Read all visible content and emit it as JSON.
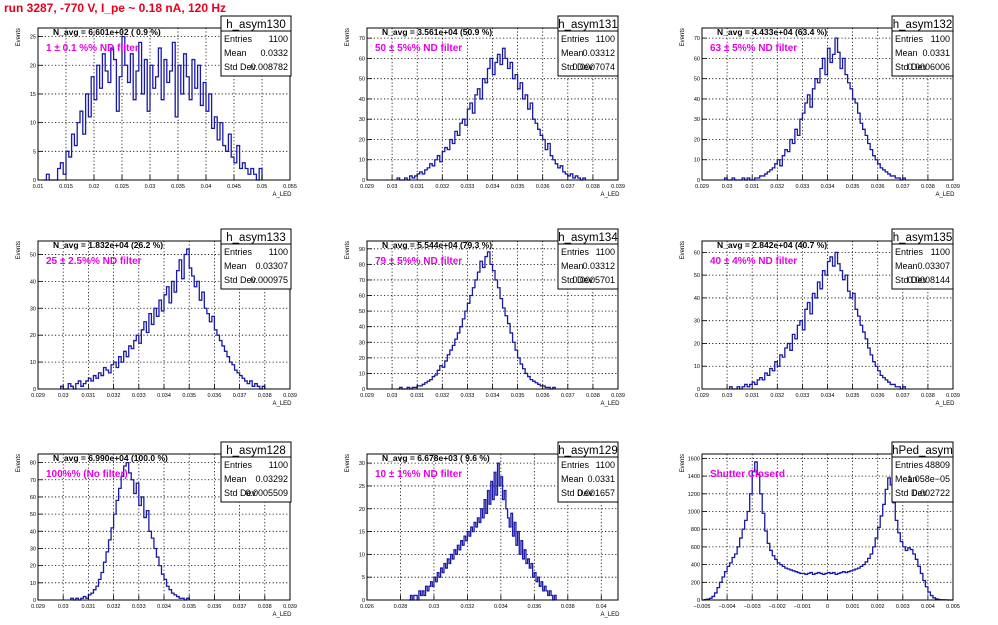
{
  "run_title": "run 3287,  -770 V, I_pe ~ 0.18 nA, 120 Hz",
  "colors": {
    "hist": "#1a1aa6",
    "label": "#e600e6",
    "title": "#e8001c",
    "grid": "#000000"
  },
  "stat_labels": {
    "entries": "Entries",
    "mean": "Mean",
    "std": "Std Dev"
  },
  "chart_data": [
    {
      "type": "histogram",
      "name": "h_asym130",
      "navg": "N_avg = 6.601e+02 ( 0.9 %)",
      "label": "1 ± 0.1 %% ND filter",
      "stats": {
        "entries": "1100",
        "mean": "0.0332",
        "std": "0.008782"
      },
      "ylabel": "Events",
      "xlabel": "A_LED",
      "xlim": [
        0.01,
        0.055
      ],
      "ylim": [
        0,
        26.5
      ],
      "xticks": [
        0.01,
        0.015,
        0.02,
        0.025,
        0.03,
        0.035,
        0.04,
        0.045,
        0.05,
        0.055
      ],
      "xticklabels": [
        "0.01",
        "0.015",
        "0.02",
        "0.025",
        "0.03",
        "0.035",
        "0.04",
        "0.045",
        "0.05",
        "0.055"
      ],
      "yticks": [
        0,
        5,
        10,
        15,
        20,
        25
      ],
      "yticklabels": [
        "0",
        "5",
        "10",
        "15",
        "20",
        "25"
      ],
      "binstart": 0.011,
      "binwidth": 0.0005,
      "counts": [
        0,
        1,
        0,
        0,
        0,
        2,
        3,
        1,
        5,
        4,
        8,
        6,
        10,
        12,
        8,
        15,
        11,
        18,
        14,
        20,
        16,
        22,
        19,
        17,
        23,
        21,
        12,
        18,
        25,
        20,
        17,
        22,
        14,
        19,
        24,
        15,
        21,
        12,
        20,
        16,
        18,
        23,
        14,
        21,
        17,
        19,
        24,
        11,
        20,
        15,
        22,
        18,
        14,
        21,
        16,
        20,
        13,
        17,
        12,
        15,
        9,
        11,
        7,
        10,
        6,
        5,
        8,
        4,
        3,
        6,
        2,
        3,
        2,
        1,
        2,
        1,
        0,
        2
      ]
    },
    {
      "type": "histogram",
      "name": "h_asym131",
      "navg": "N_avg = 3.561e+04 (50.9 %)",
      "label": "50 ± 5%% ND filter",
      "stats": {
        "entries": "1100",
        "mean": "0.03312",
        "std": "0.0007074"
      },
      "ylabel": "Events",
      "xlabel": "A_LED",
      "xlim": [
        0.029,
        0.039
      ],
      "ylim": [
        0,
        75
      ],
      "xticks": [
        0.029,
        0.03,
        0.031,
        0.032,
        0.033,
        0.034,
        0.035,
        0.036,
        0.037,
        0.038,
        0.039
      ],
      "xticklabels": [
        "0.029",
        "0.03",
        "0.031",
        "0.032",
        "0.033",
        "0.034",
        "0.035",
        "0.036",
        "0.037",
        "0.038",
        "0.039"
      ],
      "yticks": [
        0,
        10,
        20,
        30,
        40,
        50,
        60,
        70
      ],
      "yticklabels": [
        "0",
        "10",
        "20",
        "30",
        "40",
        "50",
        "60",
        "70"
      ],
      "binstart": 0.0302,
      "binwidth": 0.0001,
      "counts": [
        1,
        0,
        0,
        1,
        0,
        2,
        1,
        2,
        3,
        4,
        3,
        5,
        6,
        8,
        7,
        10,
        12,
        9,
        14,
        16,
        15,
        20,
        18,
        24,
        22,
        28,
        30,
        27,
        35,
        38,
        33,
        42,
        45,
        40,
        50,
        48,
        55,
        60,
        52,
        58,
        62,
        57,
        65,
        60,
        55,
        58,
        50,
        52,
        45,
        48,
        40,
        42,
        35,
        38,
        30,
        28,
        25,
        22,
        20,
        15,
        18,
        12,
        10,
        8,
        6,
        7,
        4,
        3,
        2,
        3,
        1,
        2,
        1,
        0,
        1
      ]
    },
    {
      "type": "histogram",
      "name": "h_asym132",
      "navg": "N_avg = 4.433e+04 (63.4 %)",
      "label": "63 ± 5%% ND filter",
      "stats": {
        "entries": "1100",
        "mean": "0.0331",
        "std": "0.0006006"
      },
      "ylabel": "Events",
      "xlabel": "A_LED",
      "xlim": [
        0.029,
        0.039
      ],
      "ylim": [
        0,
        75
      ],
      "xticks": [
        0.029,
        0.03,
        0.031,
        0.032,
        0.033,
        0.034,
        0.035,
        0.036,
        0.037,
        0.038,
        0.039
      ],
      "xticklabels": [
        "0.029",
        "0.03",
        "0.031",
        "0.032",
        "0.033",
        "0.034",
        "0.035",
        "0.036",
        "0.037",
        "0.038",
        "0.039"
      ],
      "yticks": [
        0,
        10,
        20,
        30,
        40,
        50,
        60,
        70
      ],
      "yticklabels": [
        "0",
        "10",
        "20",
        "30",
        "40",
        "50",
        "60",
        "70"
      ],
      "binstart": 0.0299,
      "binwidth": 0.0001,
      "counts": [
        1,
        0,
        0,
        1,
        0,
        0,
        0,
        1,
        0,
        1,
        0,
        0,
        1,
        1,
        2,
        2,
        3,
        4,
        5,
        6,
        8,
        10,
        7,
        12,
        15,
        14,
        20,
        18,
        25,
        22,
        30,
        33,
        38,
        42,
        36,
        45,
        50,
        48,
        55,
        60,
        52,
        65,
        58,
        62,
        70,
        63,
        55,
        60,
        52,
        48,
        45,
        40,
        38,
        33,
        28,
        25,
        22,
        18,
        15,
        12,
        10,
        8,
        6,
        5,
        4,
        3,
        2,
        2,
        1,
        1,
        0,
        1
      ]
    },
    {
      "type": "histogram",
      "name": "h_asym133",
      "navg": "N_avg = 1.832e+04 (26.2 %)",
      "label": "25 ± 2.5%% ND filter",
      "stats": {
        "entries": "1100",
        "mean": "0.03307",
        "std": "0.000975"
      },
      "ylabel": "Events",
      "xlabel": "A_LED",
      "xlim": [
        0.029,
        0.039
      ],
      "ylim": [
        0,
        55
      ],
      "xticks": [
        0.029,
        0.03,
        0.031,
        0.032,
        0.033,
        0.034,
        0.035,
        0.036,
        0.037,
        0.038,
        0.039
      ],
      "xticklabels": [
        "0.029",
        "0.03",
        "0.031",
        "0.032",
        "0.033",
        "0.034",
        "0.035",
        "0.036",
        "0.037",
        "0.038",
        "0.039"
      ],
      "yticks": [
        0,
        10,
        20,
        30,
        40,
        50
      ],
      "yticklabels": [
        "0",
        "10",
        "20",
        "30",
        "40",
        "50"
      ],
      "binstart": 0.0299,
      "binwidth": 0.0001,
      "counts": [
        1,
        0,
        0,
        2,
        1,
        0,
        2,
        3,
        1,
        2,
        3,
        4,
        3,
        5,
        4,
        6,
        5,
        8,
        7,
        6,
        9,
        10,
        8,
        12,
        10,
        14,
        12,
        16,
        15,
        18,
        20,
        17,
        22,
        25,
        21,
        28,
        24,
        30,
        27,
        33,
        29,
        35,
        38,
        32,
        40,
        36,
        44,
        48,
        41,
        50,
        52,
        45,
        42,
        38,
        40,
        33,
        36,
        30,
        28,
        25,
        27,
        22,
        20,
        18,
        16,
        14,
        12,
        10,
        9,
        7,
        6,
        5,
        4,
        3,
        2,
        3,
        1,
        2,
        1,
        0,
        1
      ]
    },
    {
      "type": "histogram",
      "name": "h_asym134",
      "navg": "N_avg = 5.544e+04 (79.3 %)",
      "label": "79 ± 5%% ND filter",
      "stats": {
        "entries": "1100",
        "mean": "0.03312",
        "std": "0.0005701"
      },
      "ylabel": "Events",
      "xlabel": "A_LED",
      "xlim": [
        0.029,
        0.039
      ],
      "ylim": [
        0,
        95
      ],
      "xticks": [
        0.029,
        0.03,
        0.031,
        0.032,
        0.033,
        0.034,
        0.035,
        0.036,
        0.037,
        0.038,
        0.039
      ],
      "xticklabels": [
        "0.029",
        "0.03",
        "0.031",
        "0.032",
        "0.033",
        "0.034",
        "0.035",
        "0.036",
        "0.037",
        "0.038",
        "0.039"
      ],
      "yticks": [
        0,
        10,
        20,
        30,
        40,
        50,
        60,
        70,
        80,
        90
      ],
      "yticklabels": [
        "0",
        "10",
        "20",
        "30",
        "40",
        "50",
        "60",
        "70",
        "80",
        "90"
      ],
      "binstart": 0.0302,
      "binwidth": 0.0001,
      "counts": [
        0,
        1,
        0,
        0,
        1,
        0,
        1,
        1,
        2,
        2,
        3,
        4,
        5,
        6,
        8,
        9,
        12,
        15,
        14,
        18,
        22,
        25,
        28,
        32,
        36,
        40,
        45,
        50,
        55,
        60,
        65,
        70,
        75,
        82,
        78,
        85,
        88,
        80,
        76,
        70,
        65,
        58,
        52,
        47,
        42,
        36,
        30,
        25,
        20,
        16,
        13,
        10,
        8,
        6,
        5,
        4,
        3,
        2,
        2,
        1,
        1,
        0,
        1
      ]
    },
    {
      "type": "histogram",
      "name": "h_asym135",
      "navg": "N_avg = 2.842e+04 (40.7 %)",
      "label": "40 ± 4%% ND filter",
      "stats": {
        "entries": "1100",
        "mean": "0.03307",
        "std": "0.0008144"
      },
      "ylabel": "Events",
      "xlabel": "A_LED",
      "xlim": [
        0.029,
        0.039
      ],
      "ylim": [
        0,
        65
      ],
      "xticks": [
        0.029,
        0.03,
        0.031,
        0.032,
        0.033,
        0.034,
        0.035,
        0.036,
        0.037,
        0.038,
        0.039
      ],
      "xticklabels": [
        "0.029",
        "0.03",
        "0.031",
        "0.032",
        "0.033",
        "0.034",
        "0.035",
        "0.036",
        "0.037",
        "0.038",
        "0.039"
      ],
      "yticks": [
        0,
        10,
        20,
        30,
        40,
        50,
        60
      ],
      "yticklabels": [
        "0",
        "10",
        "20",
        "30",
        "40",
        "50",
        "60"
      ],
      "binstart": 0.0301,
      "binwidth": 0.0001,
      "counts": [
        1,
        0,
        0,
        1,
        0,
        1,
        2,
        1,
        2,
        3,
        2,
        4,
        5,
        4,
        7,
        6,
        9,
        8,
        12,
        10,
        15,
        14,
        18,
        20,
        17,
        24,
        22,
        28,
        30,
        26,
        35,
        38,
        33,
        42,
        40,
        47,
        44,
        52,
        50,
        56,
        58,
        54,
        60,
        55,
        52,
        48,
        50,
        43,
        40,
        42,
        35,
        32,
        28,
        25,
        22,
        18,
        15,
        12,
        10,
        8,
        6,
        5,
        4,
        3,
        2,
        2,
        1,
        1,
        0,
        1
      ]
    },
    {
      "type": "histogram",
      "name": "h_asym128",
      "navg": "N_avg = 6.990e+04 (100.0 %)",
      "label": "100%% (No filter)",
      "stats": {
        "entries": "1100",
        "mean": "0.03292",
        "std": "0.0005509"
      },
      "ylabel": "Events",
      "xlabel": "A_LED",
      "xlim": [
        0.029,
        0.039
      ],
      "ylim": [
        0,
        85
      ],
      "xticks": [
        0.029,
        0.03,
        0.031,
        0.032,
        0.033,
        0.034,
        0.035,
        0.036,
        0.037,
        0.038,
        0.039
      ],
      "xticklabels": [
        "0.029",
        "0.03",
        "0.031",
        "0.032",
        "0.033",
        "0.034",
        "0.035",
        "0.036",
        "0.037",
        "0.038",
        "0.039"
      ],
      "yticks": [
        0,
        10,
        20,
        30,
        40,
        50,
        60,
        70,
        80
      ],
      "yticklabels": [
        "0",
        "10",
        "20",
        "30",
        "40",
        "50",
        "60",
        "70",
        "80"
      ],
      "binstart": 0.0303,
      "binwidth": 0.0001,
      "counts": [
        1,
        0,
        1,
        0,
        1,
        2,
        1,
        3,
        4,
        6,
        8,
        12,
        16,
        22,
        28,
        35,
        42,
        50,
        58,
        65,
        72,
        78,
        80,
        74,
        70,
        62,
        68,
        55,
        60,
        48,
        52,
        40,
        36,
        30,
        25,
        20,
        15,
        12,
        8,
        6,
        4,
        3,
        2,
        1,
        1,
        0,
        1
      ]
    },
    {
      "type": "histogram",
      "name": "h_asym129",
      "navg": "N_avg = 6.678e+03 ( 9.6 %)",
      "label": "10 ± 1%% ND filter",
      "stats": {
        "entries": "1100",
        "mean": "0.0331",
        "std": "0.001657"
      },
      "ylabel": "Events",
      "xlabel": "A_LED",
      "xlim": [
        0.026,
        0.041
      ],
      "ylim": [
        0,
        32
      ],
      "xticks": [
        0.026,
        0.028,
        0.03,
        0.032,
        0.034,
        0.036,
        0.038,
        0.04
      ],
      "xticklabels": [
        "0.026",
        "0.028",
        "0.03",
        "0.032",
        "0.034",
        "0.036",
        "0.038",
        "0.04"
      ],
      "yticks": [
        0,
        5,
        10,
        15,
        20,
        25,
        30
      ],
      "yticklabels": [
        "0",
        "5",
        "10",
        "15",
        "20",
        "25",
        "30"
      ],
      "binstart": 0.0285,
      "binwidth": 0.0001,
      "counts": [
        0,
        1,
        0,
        1,
        1,
        0,
        2,
        1,
        2,
        1,
        3,
        2,
        3,
        4,
        3,
        5,
        4,
        6,
        5,
        7,
        6,
        8,
        7,
        9,
        8,
        10,
        9,
        11,
        10,
        12,
        11,
        13,
        12,
        14,
        13,
        15,
        14,
        16,
        15,
        17,
        16,
        18,
        17,
        20,
        18,
        22,
        19,
        24,
        21,
        26,
        22,
        28,
        23,
        30,
        25,
        27,
        22,
        24,
        20,
        18,
        16,
        19,
        14,
        17,
        12,
        15,
        10,
        13,
        9,
        11,
        8,
        9,
        7,
        8,
        5,
        6,
        4,
        5,
        3,
        4,
        2,
        3,
        2,
        1,
        2,
        1,
        0,
        1
      ]
    },
    {
      "type": "histogram",
      "name": "hPed_asym",
      "navg": "",
      "label": "Shutter Closerd",
      "stats": {
        "entries": "48809",
        "mean": "−1.058e−05",
        "std": "0.002722"
      },
      "ylabel": "Events",
      "xlabel": "",
      "xlim": [
        -0.005,
        0.005
      ],
      "ylim": [
        0,
        1650
      ],
      "xticks": [
        -0.005,
        -0.004,
        -0.003,
        -0.002,
        -0.001,
        0,
        0.001,
        0.002,
        0.003,
        0.004,
        0.005
      ],
      "xticklabels": [
        "−0.005",
        "−0.004",
        "−0.003",
        "−0.002",
        "−0.001",
        "0",
        "0.001",
        "0.002",
        "0.003",
        "0.004",
        "0.005"
      ],
      "yticks": [
        0,
        200,
        400,
        600,
        800,
        1000,
        1200,
        1400,
        1600
      ],
      "yticklabels": [
        "0",
        "200",
        "400",
        "600",
        "800",
        "1000",
        "1200",
        "1400",
        "1600"
      ],
      "binstart": -0.005,
      "binwidth": 0.0001,
      "counts": [
        0,
        5,
        10,
        20,
        40,
        80,
        140,
        200,
        260,
        320,
        380,
        420,
        480,
        520,
        600,
        700,
        800,
        900,
        1000,
        1200,
        1450,
        1560,
        1420,
        1200,
        980,
        780,
        640,
        560,
        500,
        460,
        420,
        400,
        380,
        360,
        350,
        340,
        330,
        320,
        310,
        300,
        300,
        290,
        300,
        310,
        290,
        300,
        310,
        300,
        290,
        300,
        310,
        300,
        310,
        290,
        300,
        310,
        320,
        310,
        320,
        330,
        340,
        350,
        360,
        380,
        400,
        430,
        470,
        520,
        600,
        700,
        820,
        950,
        1080,
        1250,
        1380,
        1300,
        1100,
        900,
        760,
        660,
        600,
        560,
        590,
        570,
        520,
        460,
        380,
        300,
        220,
        150,
        90,
        50,
        25,
        12,
        6,
        3,
        2,
        1,
        0,
        0
      ]
    }
  ]
}
